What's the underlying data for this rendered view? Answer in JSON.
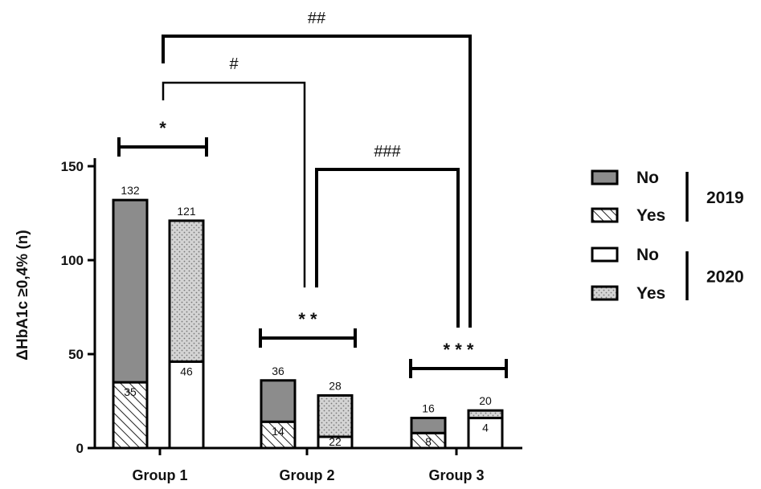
{
  "chart_data": {
    "type": "bar",
    "stacked": true,
    "ylabel": "ΔHbA1c ≥0,4% (n)",
    "xlabel": "",
    "ylim": [
      0,
      160
    ],
    "yticks": [
      "0",
      "50",
      "100",
      "150"
    ],
    "categories": [
      "Group 1",
      "Group 2",
      "Group 3"
    ],
    "bars": [
      {
        "category": "Group 1",
        "year": "2019",
        "no": 97,
        "yes": 35,
        "total_label": "132",
        "yes_label": "35"
      },
      {
        "category": "Group 1",
        "year": "2020",
        "no": 46,
        "yes": 75,
        "total_label": "121",
        "inner_label": "46"
      },
      {
        "category": "Group 2",
        "year": "2019",
        "no": 22,
        "yes": 14,
        "total_label": "36",
        "yes_label": "14"
      },
      {
        "category": "Group 2",
        "year": "2020",
        "no": 6,
        "yes": 22,
        "total_label": "28",
        "inner_label": "22"
      },
      {
        "category": "Group 3",
        "year": "2019",
        "no": 8,
        "yes": 8,
        "total_label": "16",
        "yes_label": "8"
      },
      {
        "category": "Group 3",
        "year": "2020",
        "no": 16,
        "yes": 4,
        "total_label": "20",
        "inner_label": "4"
      }
    ],
    "within_group_significance": [
      {
        "category": "Group 1",
        "label": "*"
      },
      {
        "category": "Group 2",
        "label": "* *"
      },
      {
        "category": "Group 3",
        "label": "* * *"
      }
    ],
    "between_group_significance": [
      {
        "from": "Group 1",
        "to": "Group 2",
        "label": "#"
      },
      {
        "from": "Group 1",
        "to": "Group 3",
        "label": "##"
      },
      {
        "from": "Group 2",
        "to": "Group 3",
        "label": "###"
      }
    ],
    "legend": {
      "placement": "right",
      "groups": [
        {
          "year": "2019",
          "entries": [
            {
              "label": "No",
              "fill": "gray"
            },
            {
              "label": "Yes",
              "fill": "hatched"
            }
          ]
        },
        {
          "year": "2020",
          "entries": [
            {
              "label": "No",
              "fill": "white"
            },
            {
              "label": "Yes",
              "fill": "dotted"
            }
          ]
        }
      ]
    },
    "colors": {
      "gray": "#8c8c8c",
      "dotted_bg": "#d4d4d4",
      "outline": "#000000"
    }
  }
}
